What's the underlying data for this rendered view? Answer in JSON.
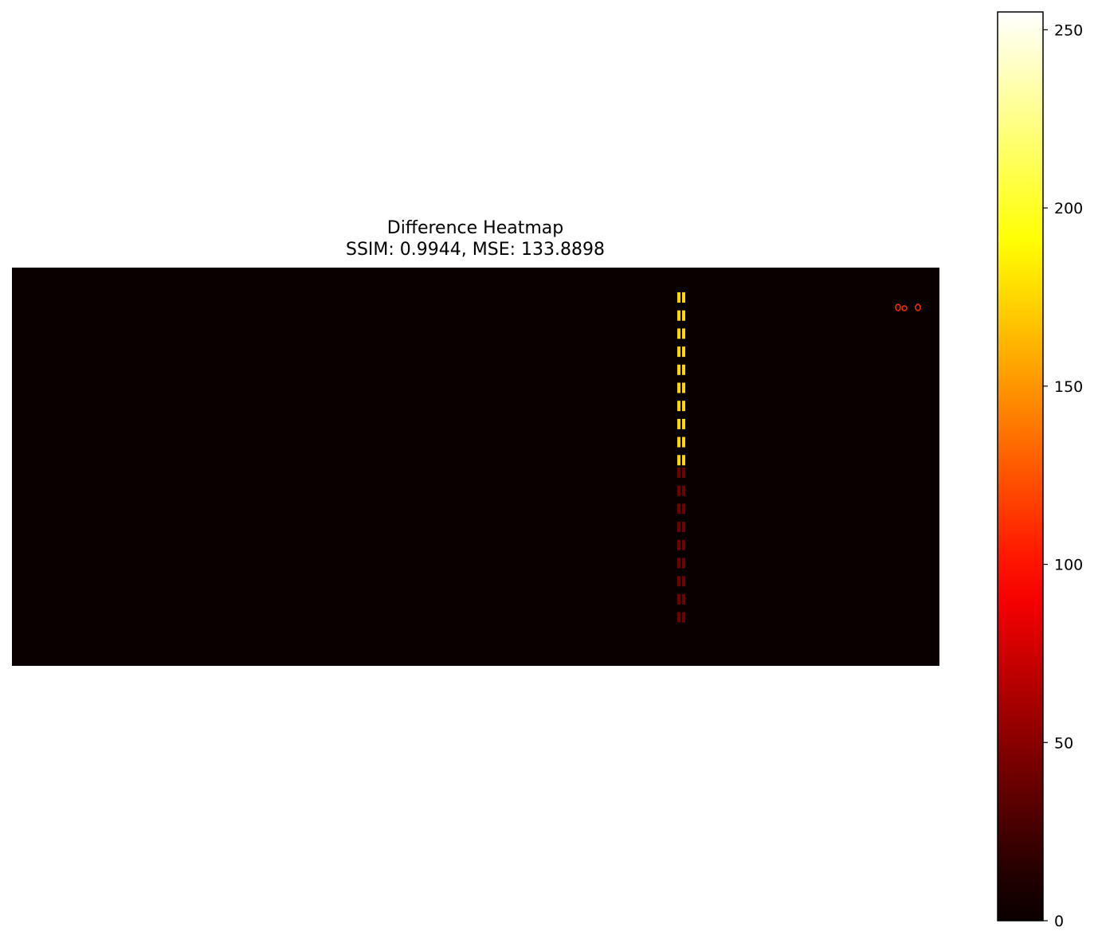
{
  "chart_data": {
    "type": "heatmap",
    "title": "Difference Heatmap",
    "subtitle": "SSIM: 0.9944, MSE: 133.8898",
    "colormap": "hot",
    "colorbar": {
      "min": 0,
      "max": 255,
      "ticks": [
        0,
        50,
        100,
        150,
        200,
        250
      ]
    },
    "background_value": 3,
    "features": [
      {
        "name": "upper dashed difference line",
        "value": 175
      },
      {
        "name": "lower dashed difference line",
        "value": 40
      },
      {
        "name": "text difference top-right",
        "value": 110
      }
    ]
  }
}
